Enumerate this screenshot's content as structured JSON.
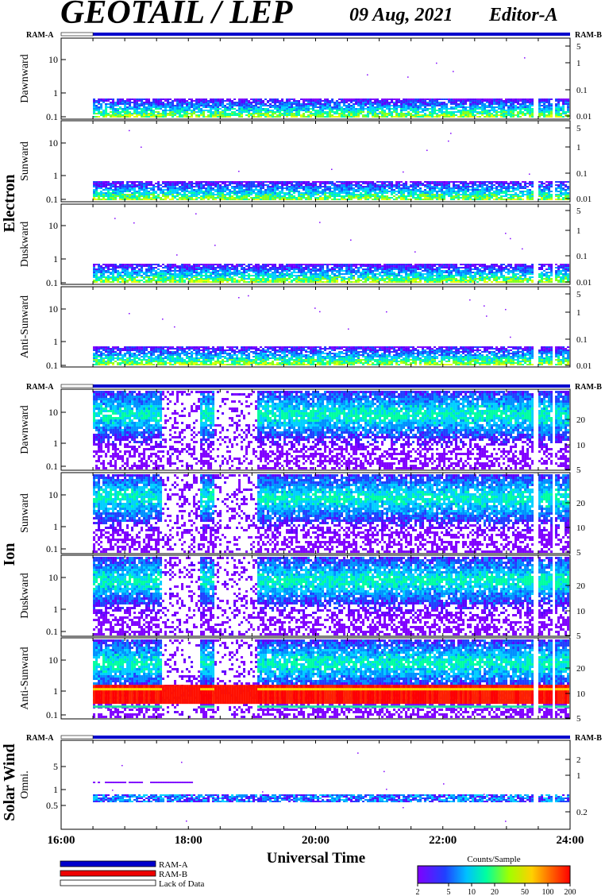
{
  "header": {
    "title": "GEOTAIL / LEP",
    "date": "09 Aug, 2021",
    "editor": "Editor-A"
  },
  "groups": [
    {
      "name": "Electron",
      "ram_left": "RAM-A",
      "ram_right": "RAM-B",
      "panels": [
        {
          "label": "Dawnward",
          "left_ticks": [
            "10",
            "1",
            "0.1"
          ],
          "right_ticks": [
            "5",
            "1",
            "0.1",
            "0.01"
          ]
        },
        {
          "label": "Sunward",
          "left_ticks": [
            "10",
            "1",
            "0.1"
          ],
          "right_ticks": [
            "5",
            "1",
            "0.1",
            "0.01"
          ]
        },
        {
          "label": "Duskward",
          "left_ticks": [
            "10",
            "1",
            "0.1"
          ],
          "right_ticks": [
            "5",
            "1",
            "0.1",
            "0.01"
          ]
        },
        {
          "label": "Anti-Sunward",
          "left_ticks": [
            "10",
            "1",
            "0.1"
          ],
          "right_ticks": [
            "5",
            "1",
            "0.1",
            "0.01"
          ]
        }
      ]
    },
    {
      "name": "Ion",
      "ram_left": "RAM-A",
      "ram_right": "RAM-B",
      "panels": [
        {
          "label": "Dawnward",
          "left_ticks": [
            "10",
            "1",
            "0.1"
          ],
          "right_ticks": [
            "20",
            "10",
            "5"
          ]
        },
        {
          "label": "Sunward",
          "left_ticks": [
            "10",
            "1",
            "0.1"
          ],
          "right_ticks": [
            "20",
            "10",
            "5"
          ]
        },
        {
          "label": "Duskward",
          "left_ticks": [
            "10",
            "1",
            "0.1"
          ],
          "right_ticks": [
            "20",
            "10",
            "5"
          ]
        },
        {
          "label": "Anti-Sunward",
          "left_ticks": [
            "10",
            "1",
            "0.1"
          ],
          "right_ticks": [
            "20",
            "10",
            "5"
          ]
        }
      ]
    },
    {
      "name": "Solar Wind",
      "ram_left": "RAM-A",
      "ram_right": "RAM-B",
      "panels": [
        {
          "label": "Omni.",
          "left_ticks": [
            "5",
            "1",
            "0.5"
          ],
          "right_ticks": [
            "2",
            "1",
            "0.2"
          ]
        }
      ]
    }
  ],
  "chart_data": {
    "type": "heatmap",
    "xlabel": "Universal Time",
    "x_ticks": [
      "16:00",
      "18:00",
      "20:00",
      "22:00",
      "24:00"
    ],
    "x_range_hours": [
      16,
      24
    ],
    "data_start_hour": 16.5,
    "data_gaps_hours": [
      [
        23.42,
        23.5
      ],
      [
        23.7,
        23.73
      ]
    ],
    "colorbar": {
      "title": "Counts/Sample",
      "ticks": [
        "2",
        "5",
        "10",
        "20",
        "50",
        "100",
        "200"
      ]
    }
  },
  "legend": [
    {
      "label": "RAM-A",
      "color": "#0000cc"
    },
    {
      "label": "RAM-B",
      "color": "#ee0000"
    },
    {
      "label": "Lack of Data",
      "color": "#ffffff"
    }
  ]
}
